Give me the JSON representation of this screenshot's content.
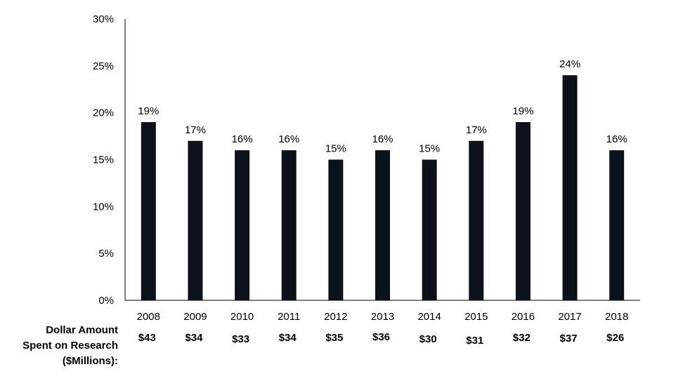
{
  "chart_data": {
    "type": "bar",
    "categories": [
      "2008",
      "2009",
      "2010",
      "2011",
      "2012",
      "2013",
      "2014",
      "2015",
      "2016",
      "2017",
      "2018"
    ],
    "values": [
      19,
      17,
      16,
      16,
      15,
      16,
      15,
      17,
      19,
      24,
      16
    ],
    "value_labels": [
      "19%",
      "17%",
      "16%",
      "16%",
      "15%",
      "16%",
      "15%",
      "17%",
      "19%",
      "24%",
      "16%"
    ],
    "ylim": [
      0,
      30
    ],
    "yticks": [
      0,
      5,
      10,
      15,
      20,
      25,
      30
    ],
    "ytick_labels": [
      "0%",
      "5%",
      "10%",
      "15%",
      "20%",
      "25%",
      "30%"
    ],
    "bar_color": "#0b121c",
    "grid": false,
    "title": "",
    "xlabel": "",
    "ylabel": "",
    "secondary_row": {
      "label_lines": [
        "Dollar Amount",
        "Spent on Research",
        "($Millions):"
      ],
      "values": [
        "$43",
        "$34",
        "$33",
        "$34",
        "$35",
        "$36",
        "$30",
        "$31",
        "$32",
        "$37",
        "$26"
      ]
    }
  }
}
